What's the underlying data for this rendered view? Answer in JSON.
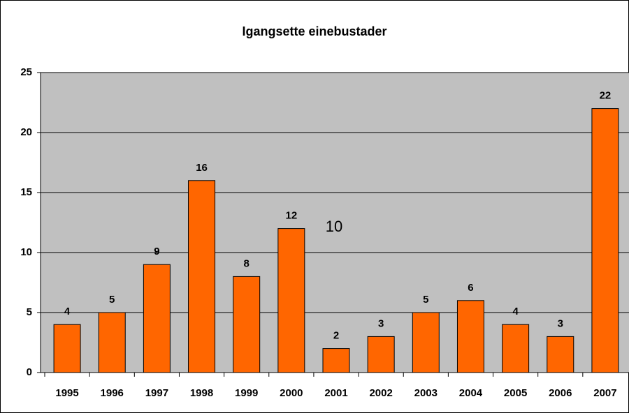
{
  "chart_data": {
    "type": "bar",
    "title": "Igangsette einebustader",
    "categories": [
      "1995",
      "1996",
      "1997",
      "1998",
      "1999",
      "2000",
      "2001",
      "2002",
      "2003",
      "2004",
      "2005",
      "2006",
      "2007"
    ],
    "values": [
      4,
      5,
      9,
      16,
      8,
      12,
      2,
      3,
      5,
      6,
      4,
      3,
      22
    ],
    "color": "#ff6600",
    "ylim": [
      0,
      25
    ],
    "yticks": [
      0,
      5,
      10,
      15,
      20,
      25
    ],
    "grid": true,
    "annotation": "10"
  }
}
